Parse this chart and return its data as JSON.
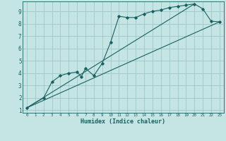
{
  "xlabel": "Humidex (Indice chaleur)",
  "ylabel": "",
  "background_color": "#c5e5e5",
  "grid_color": "#9fc8c8",
  "line_color": "#1a6060",
  "xlim": [
    -0.5,
    23.5
  ],
  "ylim": [
    0.8,
    9.8
  ],
  "xticks": [
    0,
    1,
    2,
    3,
    4,
    5,
    6,
    7,
    8,
    9,
    10,
    11,
    12,
    13,
    14,
    15,
    16,
    17,
    18,
    19,
    20,
    21,
    22,
    23
  ],
  "yticks": [
    1,
    2,
    3,
    4,
    5,
    6,
    7,
    8,
    9
  ],
  "curve1_x": [
    0,
    2,
    3,
    4,
    5,
    6,
    6.5,
    7,
    8,
    9,
    10,
    11,
    12,
    13,
    14,
    15,
    16,
    17,
    18,
    19,
    20,
    21,
    22,
    23
  ],
  "curve1_y": [
    1.2,
    2.0,
    3.3,
    3.8,
    4.0,
    4.1,
    3.7,
    4.4,
    3.8,
    4.8,
    6.5,
    8.6,
    8.5,
    8.5,
    8.8,
    9.0,
    9.1,
    9.3,
    9.4,
    9.5,
    9.6,
    9.2,
    8.2,
    8.15
  ],
  "line1_x": [
    0,
    23
  ],
  "line1_y": [
    1.2,
    8.15
  ],
  "line2_x": [
    0,
    20
  ],
  "line2_y": [
    1.2,
    9.6
  ]
}
